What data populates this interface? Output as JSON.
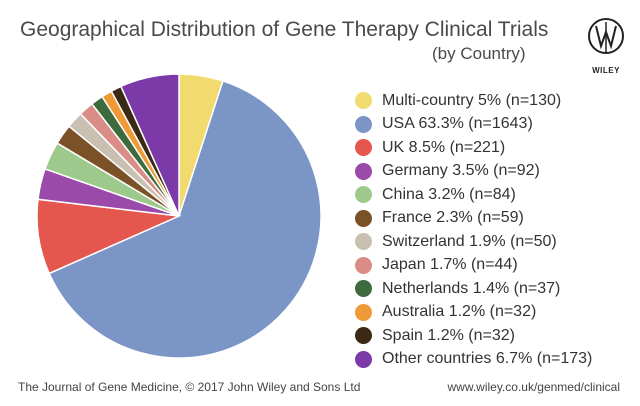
{
  "chart_data": {
    "type": "pie",
    "title": "Geographical Distribution of Gene Therapy Clinical Trials",
    "subtitle": "(by Country)",
    "legend_position": "right",
    "series": [
      {
        "name": "Multi-country",
        "label": "Multi-country 5% (n=130)",
        "percent": 5,
        "n": 130,
        "color": "#f2db6e"
      },
      {
        "name": "USA",
        "label": "USA 63.3% (n=1643)",
        "percent": 63.3,
        "n": 1643,
        "color": "#7b95c6"
      },
      {
        "name": "UK",
        "label": "UK 8.5% (n=221)",
        "percent": 8.5,
        "n": 221,
        "color": "#e5564e"
      },
      {
        "name": "Germany",
        "label": "Germany 3.5% (n=92)",
        "percent": 3.5,
        "n": 92,
        "color": "#9a4aa8"
      },
      {
        "name": "China",
        "label": "China 3.2% (n=84)",
        "percent": 3.2,
        "n": 84,
        "color": "#9ec98d"
      },
      {
        "name": "France",
        "label": "France 2.3% (n=59)",
        "percent": 2.3,
        "n": 59,
        "color": "#7b5128"
      },
      {
        "name": "Switzerland",
        "label": "Switzerland 1.9% (n=50)",
        "percent": 1.9,
        "n": 50,
        "color": "#c9c0b1"
      },
      {
        "name": "Japan",
        "label": "Japan 1.7% (n=44)",
        "percent": 1.7,
        "n": 44,
        "color": "#d98d86"
      },
      {
        "name": "Netherlands",
        "label": "Netherlands 1.4% (n=37)",
        "percent": 1.4,
        "n": 37,
        "color": "#3d6b3d"
      },
      {
        "name": "Australia",
        "label": "Australia 1.2% (n=32)",
        "percent": 1.2,
        "n": 32,
        "color": "#ef9a35"
      },
      {
        "name": "Spain",
        "label": "Spain 1.2% (n=32)",
        "percent": 1.2,
        "n": 32,
        "color": "#3a2a14"
      },
      {
        "name": "Other countries",
        "label": "Other countries 6.7% (n=173)",
        "percent": 6.7,
        "n": 173,
        "color": "#7b3aa8"
      }
    ]
  },
  "branding": {
    "logo_text": "WILEY",
    "logo_icon": "wiley-logo-icon"
  },
  "footer": {
    "source": "The Journal of Gene Medicine, © 2017 John Wiley and Sons Ltd",
    "url": "www.wiley.co.uk/genmed/clinical"
  }
}
